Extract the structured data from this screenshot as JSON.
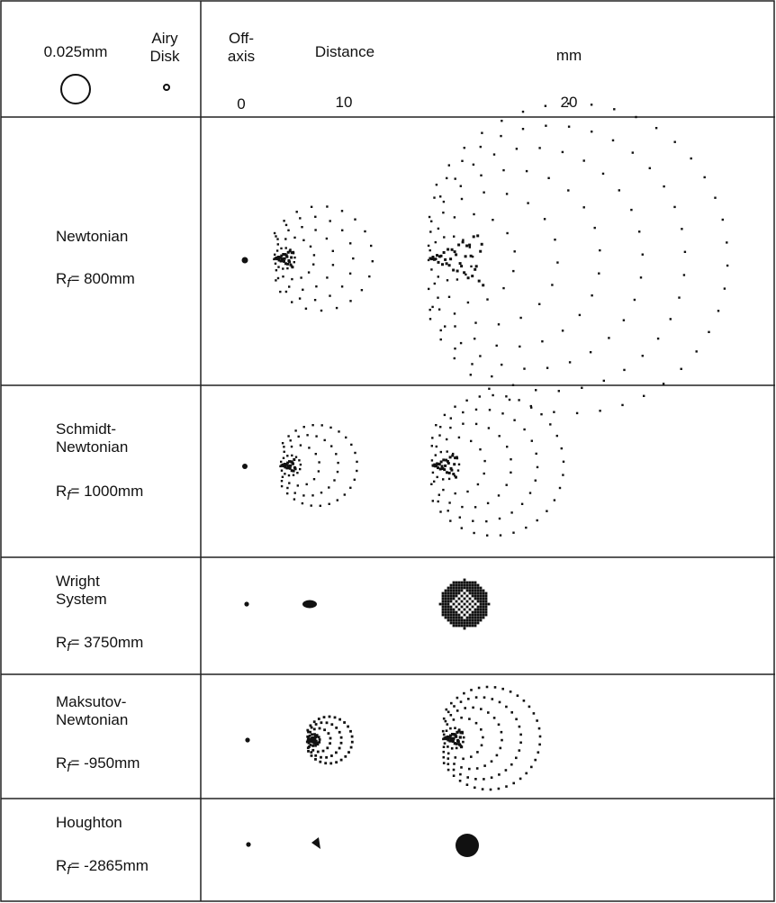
{
  "header": {
    "scale_label": "0.025mm",
    "airy_label_line1": "Airy",
    "airy_label_line2": "Disk",
    "offaxis_line1": "Off-",
    "offaxis_line2": "axis",
    "distance_label": "Distance",
    "unit_label": "mm",
    "ticks": [
      "0",
      "10",
      "20"
    ]
  },
  "rows": [
    {
      "name_lines": [
        "Newtonian"
      ],
      "rf_prefix": "R",
      "rf_sub": "f",
      "rf_value": "= 800mm"
    },
    {
      "name_lines": [
        "Schmidt-",
        "Newtonian"
      ],
      "rf_prefix": "R",
      "rf_sub": "f",
      "rf_value": "= 1000mm"
    },
    {
      "name_lines": [
        "Wright",
        "System"
      ],
      "rf_prefix": "R",
      "rf_sub": "f",
      "rf_value": "= 3750mm"
    },
    {
      "name_lines": [
        "Maksutov-",
        "Newtonian"
      ],
      "rf_prefix": "R",
      "rf_sub": "f",
      "rf_value": "= -950mm"
    },
    {
      "name_lines": [
        "Houghton"
      ],
      "rf_prefix": "R",
      "rf_sub": "f",
      "rf_value": "= -2865mm"
    }
  ],
  "colors": {
    "ink": "#111111",
    "line": "#222222",
    "background": "#ffffff"
  }
}
